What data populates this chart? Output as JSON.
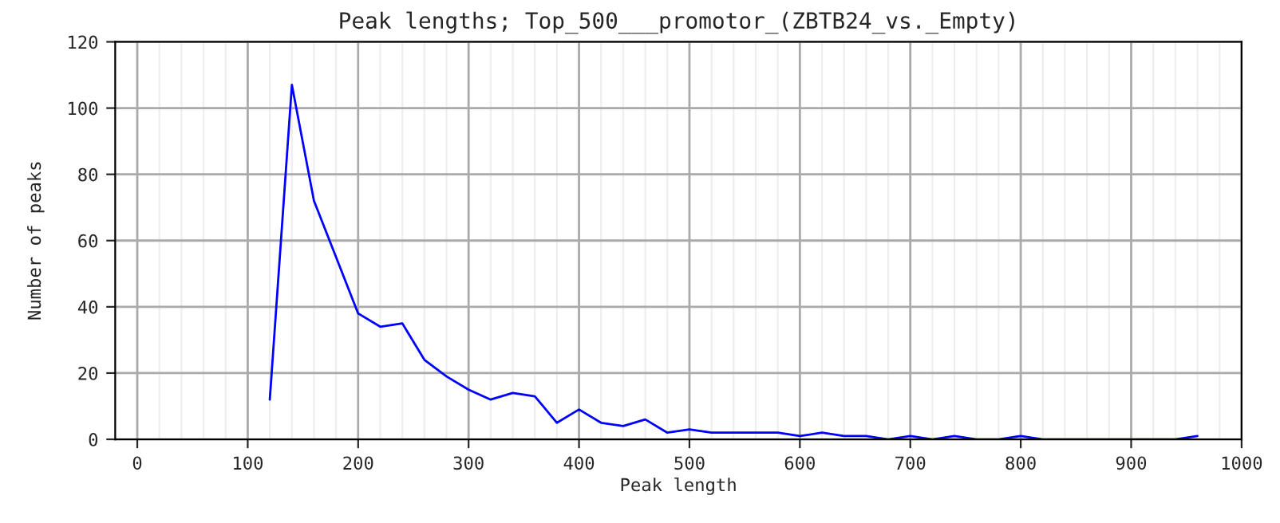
{
  "chart_data": {
    "type": "line",
    "title": "Peak lengths; Top_500___promotor_(ZBTB24_vs._Empty)",
    "xlabel": "Peak length",
    "ylabel": "Number of peaks",
    "x": [
      120,
      140,
      160,
      180,
      200,
      220,
      240,
      260,
      280,
      300,
      320,
      340,
      360,
      380,
      400,
      420,
      440,
      460,
      480,
      500,
      520,
      540,
      560,
      580,
      600,
      620,
      640,
      660,
      680,
      700,
      720,
      740,
      760,
      780,
      800,
      820,
      840,
      860,
      880,
      900,
      920,
      940,
      960
    ],
    "series": [
      {
        "color": "#0000ff",
        "values": [
          12,
          107,
          72,
          55,
          38,
          34,
          35,
          24,
          19,
          15,
          12,
          14,
          13,
          5,
          9,
          5,
          4,
          6,
          2,
          3,
          2,
          2,
          2,
          2,
          1,
          2,
          1,
          1,
          0,
          1,
          0,
          1,
          0,
          0,
          1,
          0,
          0,
          0,
          0,
          0,
          0,
          0,
          1
        ]
      }
    ],
    "xlim": [
      -20,
      1000
    ],
    "ylim": [
      0,
      120
    ],
    "xticks": [
      0,
      100,
      200,
      300,
      400,
      500,
      600,
      700,
      800,
      900,
      1000
    ],
    "yticks": [
      0,
      20,
      40,
      60,
      80,
      100,
      120
    ],
    "grid": true,
    "legend": false,
    "marker": "none",
    "line_style": "solid"
  }
}
